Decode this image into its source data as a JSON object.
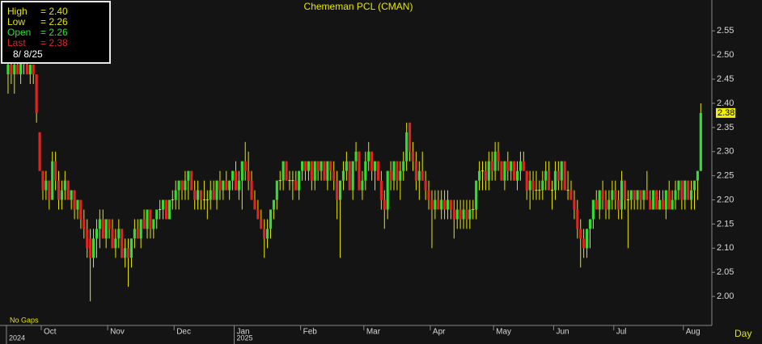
{
  "chart_data": {
    "type": "candlestick",
    "title": "Chememan PCL (CMAN)",
    "open": [
      2.46,
      2.48,
      2.46,
      2.48,
      2.46,
      2.5,
      2.48,
      2.46,
      2.48,
      2.46,
      2.34,
      2.26,
      2.22,
      2.24,
      2.2,
      2.28,
      2.24,
      2.2,
      2.22,
      2.24,
      2.2,
      2.22,
      2.18,
      2.2,
      2.16,
      2.14,
      2.12,
      2.08,
      2.12,
      2.14,
      2.16,
      2.12,
      2.16,
      2.14,
      2.1,
      2.12,
      2.14,
      2.08,
      2.1,
      2.08,
      2.12,
      2.14,
      2.12,
      2.16,
      2.14,
      2.18,
      2.14,
      2.16,
      2.18,
      2.18,
      2.2,
      2.16,
      2.2,
      2.2,
      2.22,
      2.24,
      2.22,
      2.24,
      2.26,
      2.22,
      2.2,
      2.22,
      2.2,
      2.2,
      2.2,
      2.22,
      2.2,
      2.24,
      2.22,
      2.24,
      2.22,
      2.24,
      2.26,
      2.22,
      2.24,
      2.28,
      2.26,
      2.24,
      2.2,
      2.18,
      2.16,
      2.14,
      2.12,
      2.14,
      2.18,
      2.2,
      2.24,
      2.24,
      2.28,
      2.24,
      2.24,
      2.24,
      2.22,
      2.26,
      2.28,
      2.26,
      2.28,
      2.24,
      2.28,
      2.26,
      2.28,
      2.24,
      2.28,
      2.26,
      2.24,
      2.2,
      2.24,
      2.26,
      2.28,
      2.22,
      2.28,
      2.3,
      2.22,
      2.24,
      2.28,
      2.3,
      2.26,
      2.28,
      2.24,
      2.2,
      2.18,
      2.26,
      2.24,
      2.28,
      2.24,
      2.26,
      2.28,
      2.36,
      2.3,
      2.28,
      2.24,
      2.26,
      2.24,
      2.22,
      2.2,
      2.18,
      2.2,
      2.18,
      2.2,
      2.18,
      2.2,
      2.18,
      2.16,
      2.18,
      2.16,
      2.18,
      2.16,
      2.18,
      2.18,
      2.24,
      2.26,
      2.26,
      2.24,
      2.28,
      2.26,
      2.3,
      2.28,
      2.24,
      2.28,
      2.26,
      2.28,
      2.24,
      2.26,
      2.28,
      2.26,
      2.22,
      2.24,
      2.22,
      2.22,
      2.22,
      2.24,
      2.26,
      2.22,
      2.22,
      2.26,
      2.24,
      2.28,
      2.22,
      2.22,
      2.2,
      2.18,
      2.14,
      2.12,
      2.1,
      2.14,
      2.16,
      2.2,
      2.18,
      2.22,
      2.2,
      2.18,
      2.2,
      2.22,
      2.2,
      2.18,
      2.24,
      2.2,
      2.2,
      2.22,
      2.2,
      2.22,
      2.2,
      2.22,
      2.2,
      2.18,
      2.22,
      2.18,
      2.2,
      2.18,
      2.22,
      2.18,
      2.2,
      2.22,
      2.24,
      2.2,
      2.24,
      2.2,
      2.22,
      2.24,
      2.26
    ],
    "high": [
      2.5,
      2.5,
      2.5,
      2.5,
      2.5,
      2.5,
      2.5,
      2.48,
      2.48,
      2.46,
      2.34,
      2.26,
      2.26,
      2.24,
      2.3,
      2.3,
      2.26,
      2.24,
      2.26,
      2.24,
      2.22,
      2.22,
      2.2,
      2.2,
      2.18,
      2.16,
      2.14,
      2.14,
      2.16,
      2.18,
      2.18,
      2.16,
      2.16,
      2.16,
      2.14,
      2.16,
      2.14,
      2.12,
      2.12,
      2.12,
      2.16,
      2.16,
      2.16,
      2.18,
      2.18,
      2.18,
      2.16,
      2.18,
      2.2,
      2.2,
      2.2,
      2.2,
      2.22,
      2.24,
      2.24,
      2.24,
      2.26,
      2.26,
      2.26,
      2.24,
      2.24,
      2.22,
      2.24,
      2.22,
      2.24,
      2.24,
      2.24,
      2.26,
      2.24,
      2.26,
      2.24,
      2.26,
      2.28,
      2.26,
      2.28,
      2.32,
      2.3,
      2.26,
      2.22,
      2.2,
      2.18,
      2.16,
      2.16,
      2.18,
      2.2,
      2.24,
      2.26,
      2.28,
      2.28,
      2.26,
      2.26,
      2.26,
      2.26,
      2.28,
      2.28,
      2.28,
      2.28,
      2.28,
      2.28,
      2.28,
      2.28,
      2.28,
      2.28,
      2.28,
      2.26,
      2.24,
      2.28,
      2.3,
      2.28,
      2.28,
      2.32,
      2.3,
      2.26,
      2.3,
      2.32,
      2.3,
      2.28,
      2.28,
      2.26,
      2.22,
      2.26,
      2.28,
      2.28,
      2.28,
      2.28,
      2.3,
      2.36,
      2.36,
      2.32,
      2.3,
      2.28,
      2.3,
      2.26,
      2.24,
      2.22,
      2.22,
      2.22,
      2.22,
      2.22,
      2.22,
      2.2,
      2.2,
      2.2,
      2.2,
      2.2,
      2.2,
      2.2,
      2.2,
      2.24,
      2.28,
      2.28,
      2.28,
      2.3,
      2.3,
      2.32,
      2.32,
      2.28,
      2.28,
      2.3,
      2.28,
      2.28,
      2.28,
      2.3,
      2.3,
      2.26,
      2.26,
      2.26,
      2.26,
      2.24,
      2.26,
      2.28,
      2.28,
      2.24,
      2.28,
      2.28,
      2.28,
      2.28,
      2.26,
      2.24,
      2.22,
      2.2,
      2.16,
      2.14,
      2.14,
      2.16,
      2.2,
      2.22,
      2.22,
      2.24,
      2.22,
      2.22,
      2.24,
      2.24,
      2.22,
      2.26,
      2.24,
      2.22,
      2.22,
      2.22,
      2.22,
      2.22,
      2.22,
      2.26,
      2.22,
      2.22,
      2.22,
      2.22,
      2.22,
      2.22,
      2.24,
      2.22,
      2.24,
      2.24,
      2.24,
      2.24,
      2.24,
      2.24,
      2.24,
      2.26,
      2.4
    ],
    "low": [
      2.42,
      2.44,
      2.42,
      2.46,
      2.44,
      2.46,
      2.46,
      2.44,
      2.44,
      2.36,
      2.26,
      2.2,
      2.2,
      2.18,
      2.2,
      2.22,
      2.18,
      2.18,
      2.2,
      2.2,
      2.18,
      2.16,
      2.16,
      2.14,
      2.12,
      2.08,
      1.99,
      2.06,
      2.08,
      2.1,
      2.12,
      2.1,
      2.12,
      2.1,
      2.08,
      2.1,
      2.08,
      2.06,
      2.02,
      2.06,
      2.1,
      2.12,
      2.1,
      2.14,
      2.12,
      2.12,
      2.12,
      2.14,
      2.16,
      2.16,
      2.16,
      2.16,
      2.18,
      2.18,
      2.18,
      2.2,
      2.2,
      2.2,
      2.22,
      2.18,
      2.18,
      2.18,
      2.18,
      2.16,
      2.18,
      2.2,
      2.18,
      2.2,
      2.2,
      2.22,
      2.2,
      2.22,
      2.22,
      2.2,
      2.18,
      2.24,
      2.22,
      2.2,
      2.18,
      2.16,
      2.14,
      2.08,
      2.1,
      2.12,
      2.16,
      2.18,
      2.22,
      2.22,
      2.24,
      2.22,
      2.2,
      2.22,
      2.2,
      2.24,
      2.24,
      2.24,
      2.22,
      2.22,
      2.24,
      2.24,
      2.24,
      2.22,
      2.24,
      2.22,
      2.16,
      2.08,
      2.22,
      2.24,
      2.22,
      2.2,
      2.26,
      2.22,
      2.2,
      2.22,
      2.26,
      2.24,
      2.22,
      2.24,
      2.18,
      2.14,
      2.16,
      2.22,
      2.22,
      2.22,
      2.2,
      2.24,
      2.26,
      2.28,
      2.26,
      2.22,
      2.2,
      2.24,
      2.2,
      2.18,
      2.1,
      2.16,
      2.18,
      2.16,
      2.16,
      2.16,
      2.16,
      2.12,
      2.14,
      2.14,
      2.14,
      2.14,
      2.14,
      2.16,
      2.16,
      2.22,
      2.22,
      2.22,
      2.22,
      2.24,
      2.24,
      2.26,
      2.24,
      2.22,
      2.24,
      2.24,
      2.24,
      2.22,
      2.24,
      2.26,
      2.2,
      2.18,
      2.2,
      2.2,
      2.2,
      2.2,
      2.22,
      2.22,
      2.18,
      2.2,
      2.22,
      2.22,
      2.22,
      2.2,
      2.2,
      2.16,
      2.12,
      2.06,
      2.08,
      2.08,
      2.1,
      2.14,
      2.18,
      2.16,
      2.18,
      2.16,
      2.16,
      2.18,
      2.18,
      2.16,
      2.16,
      2.18,
      2.1,
      2.18,
      2.18,
      2.18,
      2.18,
      2.18,
      2.2,
      2.18,
      2.18,
      2.18,
      2.18,
      2.18,
      2.16,
      2.18,
      2.18,
      2.18,
      2.2,
      2.18,
      2.18,
      2.2,
      2.18,
      2.18,
      2.2,
      2.26
    ],
    "close": [
      2.48,
      2.46,
      2.48,
      2.46,
      2.5,
      2.48,
      2.46,
      2.48,
      2.46,
      2.38,
      2.26,
      2.22,
      2.24,
      2.2,
      2.28,
      2.24,
      2.2,
      2.22,
      2.24,
      2.2,
      2.22,
      2.18,
      2.2,
      2.16,
      2.14,
      2.1,
      2.08,
      2.12,
      2.14,
      2.16,
      2.12,
      2.16,
      2.14,
      2.1,
      2.12,
      2.14,
      2.08,
      2.1,
      2.08,
      2.12,
      2.14,
      2.12,
      2.16,
      2.14,
      2.18,
      2.14,
      2.16,
      2.18,
      2.18,
      2.2,
      2.16,
      2.2,
      2.2,
      2.22,
      2.24,
      2.22,
      2.24,
      2.26,
      2.22,
      2.2,
      2.22,
      2.2,
      2.2,
      2.2,
      2.22,
      2.2,
      2.24,
      2.22,
      2.24,
      2.22,
      2.24,
      2.26,
      2.22,
      2.24,
      2.28,
      2.26,
      2.24,
      2.2,
      2.18,
      2.16,
      2.14,
      2.12,
      2.14,
      2.18,
      2.2,
      2.24,
      2.24,
      2.28,
      2.24,
      2.24,
      2.24,
      2.22,
      2.26,
      2.28,
      2.26,
      2.28,
      2.24,
      2.28,
      2.26,
      2.28,
      2.24,
      2.28,
      2.26,
      2.24,
      2.2,
      2.24,
      2.26,
      2.28,
      2.22,
      2.28,
      2.3,
      2.22,
      2.24,
      2.28,
      2.3,
      2.26,
      2.28,
      2.24,
      2.2,
      2.18,
      2.26,
      2.24,
      2.28,
      2.24,
      2.26,
      2.28,
      2.34,
      2.3,
      2.28,
      2.24,
      2.26,
      2.24,
      2.22,
      2.2,
      2.18,
      2.2,
      2.18,
      2.2,
      2.18,
      2.2,
      2.18,
      2.16,
      2.18,
      2.16,
      2.18,
      2.16,
      2.18,
      2.18,
      2.24,
      2.26,
      2.26,
      2.24,
      2.28,
      2.26,
      2.3,
      2.28,
      2.24,
      2.28,
      2.26,
      2.28,
      2.24,
      2.26,
      2.28,
      2.26,
      2.22,
      2.24,
      2.22,
      2.22,
      2.22,
      2.24,
      2.26,
      2.22,
      2.22,
      2.26,
      2.24,
      2.28,
      2.22,
      2.22,
      2.2,
      2.18,
      2.14,
      2.12,
      2.1,
      2.14,
      2.16,
      2.2,
      2.18,
      2.22,
      2.2,
      2.18,
      2.2,
      2.22,
      2.2,
      2.18,
      2.24,
      2.2,
      2.2,
      2.22,
      2.2,
      2.22,
      2.2,
      2.22,
      2.2,
      2.18,
      2.22,
      2.18,
      2.2,
      2.18,
      2.22,
      2.18,
      2.2,
      2.22,
      2.24,
      2.2,
      2.24,
      2.2,
      2.22,
      2.24,
      2.26,
      2.38
    ],
    "up_color": "#33dd33",
    "down_color": "#e02424",
    "wick_color": "#e6e600",
    "xlim": [
      -0.5,
      222.5
    ],
    "xticks": [
      {
        "value": 11,
        "label": "Oct"
      },
      {
        "value": 32,
        "label": "Nov"
      },
      {
        "value": 53,
        "label": "Dec"
      },
      {
        "value": 72,
        "label": "Jan"
      },
      {
        "value": 93,
        "label": "Feb"
      },
      {
        "value": 113,
        "label": "Mar"
      },
      {
        "value": 134,
        "label": "Apr"
      },
      {
        "value": 154,
        "label": "May"
      },
      {
        "value": 173,
        "label": "Jun"
      },
      {
        "value": 192,
        "label": "Jul"
      },
      {
        "value": 214,
        "label": "Aug"
      }
    ],
    "year_labels": [
      {
        "value": 0,
        "label": "2024"
      },
      {
        "value": 72,
        "label": "2025"
      }
    ],
    "ylim": [
      1.94,
      2.614
    ],
    "yticks": [
      {
        "value": 2.0,
        "label": "2.00"
      },
      2.05,
      {
        "value": 2.1,
        "label": "2.10"
      },
      2.15,
      {
        "value": 2.2,
        "label": "2.20"
      },
      2.25,
      {
        "value": 2.3,
        "label": "2.30"
      },
      2.35,
      {
        "value": 2.4,
        "label": "2.40"
      },
      2.45,
      {
        "value": 2.5,
        "label": "2.50"
      },
      2.55
    ],
    "legend": [
      {
        "label": "High",
        "value": "= 2.40",
        "color": "#e6e600"
      },
      {
        "label": "Low",
        "value": "= 2.26",
        "color": "#e6e600"
      },
      {
        "label": "Open",
        "value": "= 2.26",
        "color": "#33dd33"
      },
      {
        "label": "Last",
        "value": "= 2.38",
        "color": "#e02424"
      }
    ],
    "date": "8/  8/25",
    "last_price": {
      "value": 2.38,
      "label": "2.38"
    },
    "gap_note": "No Gaps",
    "period": "Day"
  }
}
